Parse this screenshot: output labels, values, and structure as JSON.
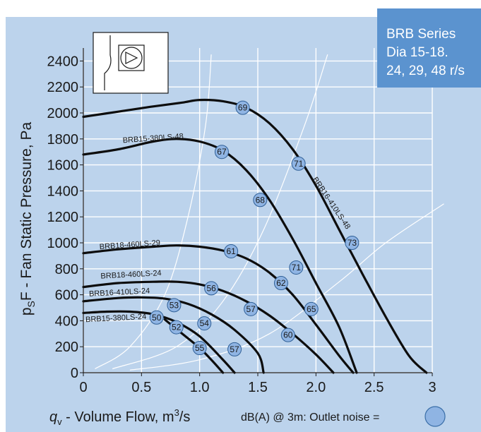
{
  "chart_data": {
    "type": "line",
    "series_box": [
      "BRB Series",
      "Dia 15-18.",
      "24, 29, 48 r/s"
    ],
    "xlabel": {
      "symbol": "q",
      "sub": "v",
      "text": " - Volume Flow, m",
      "sup": "3",
      "unit": "/s"
    },
    "ylabel": {
      "symbol": "p",
      "sub": "S",
      "text": "F - Fan Static Pressure, Pa"
    },
    "legend": {
      "text": "dB(A) @ 3m:  Outlet noise  =",
      "marker_color": "#8fb4e3"
    },
    "xlim": [
      0,
      3
    ],
    "ylim": [
      0,
      2500
    ],
    "x_ticks": [
      0,
      0.5,
      1,
      1.5,
      2,
      2.5,
      3
    ],
    "x_tick_labels": [
      "0",
      "0.5",
      "1.0",
      "1.5",
      "2.0",
      "2.5",
      "3"
    ],
    "y_ticks": [
      0,
      200,
      400,
      600,
      800,
      1000,
      1200,
      1400,
      1600,
      1800,
      2000,
      2200,
      2400
    ],
    "y_tick_labels": [
      "0",
      "200",
      "400",
      "600",
      "800",
      "1000",
      "1200",
      "1400",
      "1600",
      "1800",
      "2000",
      "2200",
      "2400"
    ],
    "grid": true,
    "colors": {
      "background": "#bcd3ec",
      "curve": "#0d0d0d",
      "system_line": "#ffffff",
      "marker": "#8fb4e3",
      "series_box": "#5b93cf"
    },
    "series": [
      {
        "id": "c69",
        "points": [
          [
            0,
            1970
          ],
          [
            0.3,
            2010
          ],
          [
            0.6,
            2050
          ],
          [
            0.85,
            2080
          ],
          [
            1.0,
            2100
          ],
          [
            1.2,
            2090
          ],
          [
            1.4,
            2040
          ],
          [
            1.6,
            1920
          ],
          [
            1.8,
            1720
          ],
          [
            2.0,
            1440
          ],
          [
            2.2,
            1100
          ],
          [
            2.4,
            760
          ],
          [
            2.6,
            430
          ],
          [
            2.8,
            130
          ],
          [
            2.95,
            0
          ]
        ]
      },
      {
        "id": "c48-380",
        "points": [
          [
            0,
            1680
          ],
          [
            0.3,
            1720
          ],
          [
            0.6,
            1780
          ],
          [
            0.8,
            1800
          ],
          [
            1.0,
            1780
          ],
          [
            1.2,
            1710
          ],
          [
            1.4,
            1560
          ],
          [
            1.6,
            1330
          ],
          [
            1.8,
            1030
          ],
          [
            2.0,
            690
          ],
          [
            2.2,
            350
          ],
          [
            2.35,
            0
          ]
        ]
      },
      {
        "id": "c29",
        "points": [
          [
            0,
            920
          ],
          [
            0.3,
            950
          ],
          [
            0.6,
            970
          ],
          [
            0.8,
            980
          ],
          [
            1.0,
            970
          ],
          [
            1.2,
            940
          ],
          [
            1.4,
            880
          ],
          [
            1.6,
            770
          ],
          [
            1.8,
            600
          ],
          [
            2.0,
            370
          ],
          [
            2.2,
            130
          ],
          [
            2.32,
            0
          ]
        ]
      },
      {
        "id": "c24-460",
        "points": [
          [
            0,
            660
          ],
          [
            0.3,
            690
          ],
          [
            0.6,
            700
          ],
          [
            0.8,
            700
          ],
          [
            1.0,
            680
          ],
          [
            1.2,
            630
          ],
          [
            1.4,
            550
          ],
          [
            1.6,
            440
          ],
          [
            1.8,
            300
          ],
          [
            2.0,
            140
          ],
          [
            2.15,
            0
          ]
        ]
      },
      {
        "id": "c24-410",
        "points": [
          [
            0,
            550
          ],
          [
            0.3,
            575
          ],
          [
            0.5,
            580
          ],
          [
            0.7,
            570
          ],
          [
            0.9,
            530
          ],
          [
            1.1,
            450
          ],
          [
            1.3,
            330
          ],
          [
            1.5,
            150
          ],
          [
            1.55,
            0
          ]
        ]
      },
      {
        "id": "c24-380",
        "points": [
          [
            0,
            460
          ],
          [
            0.2,
            470
          ],
          [
            0.4,
            470
          ],
          [
            0.6,
            450
          ],
          [
            0.8,
            390
          ],
          [
            1.0,
            280
          ],
          [
            1.2,
            100
          ],
          [
            1.3,
            0
          ]
        ]
      },
      {
        "id": "c-inner",
        "points": [
          [
            0.7,
            410
          ],
          [
            0.85,
            300
          ],
          [
            1.0,
            190
          ],
          [
            1.1,
            100
          ],
          [
            1.2,
            0
          ]
        ]
      }
    ],
    "curve_labels": [
      {
        "text": "BRB15-380LS-48",
        "x": 0.34,
        "y": 1770,
        "rotate": -4
      },
      {
        "text": "BRB16-410LS-48",
        "x": 1.97,
        "y": 1490,
        "rotate": 56
      },
      {
        "text": "BRB18-460LS-29",
        "x": 0.14,
        "y": 950,
        "rotate": -4
      },
      {
        "text": "BRB18-460LS-24",
        "x": 0.15,
        "y": 725,
        "rotate": -3
      },
      {
        "text": "BRB16-410LS-24",
        "x": 0.05,
        "y": 588,
        "rotate": -3
      },
      {
        "text": "BRB15-380LS-24",
        "x": 0.02,
        "y": 390,
        "rotate": -3
      }
    ],
    "noise_markers": [
      {
        "label": "69",
        "x": 1.37,
        "y": 2040
      },
      {
        "label": "67",
        "x": 1.19,
        "y": 1700
      },
      {
        "label": "71",
        "x": 1.85,
        "y": 1610
      },
      {
        "label": "68",
        "x": 1.52,
        "y": 1330
      },
      {
        "label": "73",
        "x": 2.31,
        "y": 1000
      },
      {
        "label": "61",
        "x": 1.27,
        "y": 935
      },
      {
        "label": "71",
        "x": 1.83,
        "y": 810
      },
      {
        "label": "62",
        "x": 1.7,
        "y": 690
      },
      {
        "label": "56",
        "x": 1.1,
        "y": 650
      },
      {
        "label": "53",
        "x": 0.78,
        "y": 520
      },
      {
        "label": "57",
        "x": 1.44,
        "y": 490
      },
      {
        "label": "65",
        "x": 1.96,
        "y": 490
      },
      {
        "label": "50",
        "x": 0.63,
        "y": 425
      },
      {
        "label": "54",
        "x": 1.04,
        "y": 380
      },
      {
        "label": "52",
        "x": 0.8,
        "y": 350
      },
      {
        "label": "60",
        "x": 1.76,
        "y": 290
      },
      {
        "label": "55",
        "x": 1.0,
        "y": 190
      },
      {
        "label": "57",
        "x": 1.3,
        "y": 180
      }
    ],
    "system_lines": [
      [
        [
          0.1,
          30
        ],
        [
          0.4,
          200
        ],
        [
          0.7,
          600
        ],
        [
          0.9,
          1200
        ],
        [
          1.05,
          1900
        ],
        [
          1.1,
          2450
        ]
      ],
      [
        [
          0.25,
          30
        ],
        [
          0.8,
          200
        ],
        [
          1.2,
          550
        ],
        [
          1.55,
          1100
        ],
        [
          1.9,
          1900
        ],
        [
          2.1,
          2450
        ]
      ],
      [
        [
          0.4,
          20
        ],
        [
          1.0,
          100
        ],
        [
          1.6,
          300
        ],
        [
          2.2,
          700
        ],
        [
          2.6,
          1000
        ],
        [
          3.1,
          1300
        ]
      ]
    ]
  }
}
